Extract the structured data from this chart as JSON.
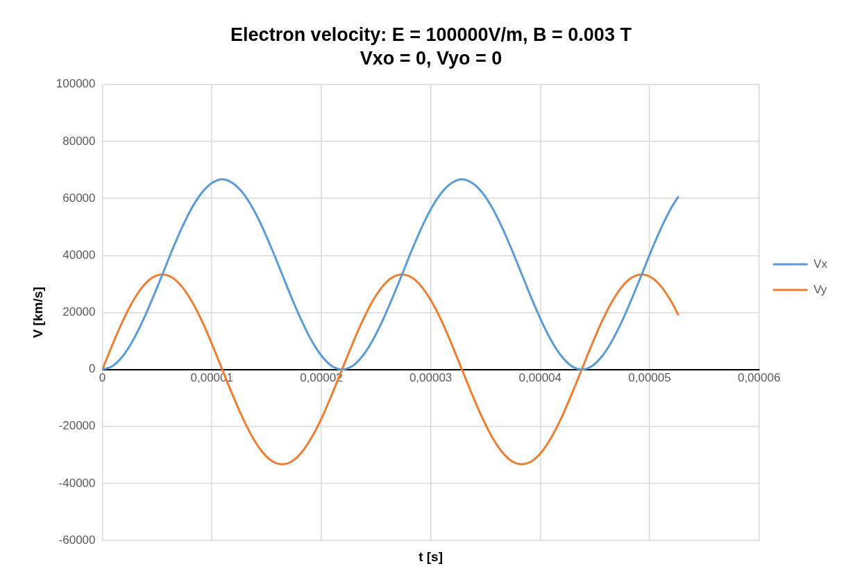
{
  "chart_data": {
    "type": "line",
    "title": "Electron velocity: E = 100000V/m, B = 0.003 T",
    "subtitle": "Vxo = 0, Vyo = 0",
    "xlabel": "t [s]",
    "ylabel": "V [km/s]",
    "x": [
      0,
      9.1e-07,
      1.83e-06,
      2.74e-06,
      3.65e-06,
      4.56e-06,
      5.48e-06,
      6.39e-06,
      7.3e-06,
      8.21e-06,
      9.13e-06,
      1.004e-05,
      1.095e-05,
      1.186e-05,
      1.278e-05,
      1.369e-05,
      1.46e-05,
      1.551e-05,
      1.643e-05,
      1.734e-05,
      1.825e-05,
      1.916e-05,
      2.008e-05,
      2.099e-05,
      2.19e-05,
      2.281e-05,
      2.373e-05,
      2.464e-05,
      2.555e-05,
      2.646e-05,
      2.738e-05,
      2.829e-05,
      2.92e-05,
      3.011e-05,
      3.103e-05,
      3.194e-05,
      3.285e-05,
      3.376e-05,
      3.468e-05,
      3.559e-05,
      3.65e-05,
      3.741e-05,
      3.833e-05,
      3.924e-05,
      4.015e-05,
      4.106e-05,
      4.198e-05,
      4.289e-05,
      4.38e-05,
      4.471e-05,
      4.563e-05,
      4.654e-05,
      4.745e-05,
      4.836e-05,
      4.928e-05,
      5.019e-05,
      5.11e-05,
      5.201e-05,
      5.26e-05
    ],
    "series": [
      {
        "name": "Vx",
        "color": "#5b9bd5",
        "values": [
          0,
          1100,
          4500,
          9800,
          16700,
          24700,
          33300,
          42000,
          50000,
          56900,
          62200,
          65500,
          66700,
          65500,
          62200,
          56900,
          50000,
          42000,
          33300,
          24700,
          16700,
          9800,
          4500,
          1100,
          0,
          1100,
          4500,
          9800,
          16700,
          24700,
          33300,
          42000,
          50000,
          56900,
          62200,
          65500,
          66700,
          65500,
          62200,
          56900,
          50000,
          42000,
          33300,
          24700,
          16700,
          9800,
          4500,
          1100,
          0,
          1100,
          4500,
          9800,
          16700,
          24700,
          33300,
          42000,
          50000,
          56900,
          60500
        ]
      },
      {
        "name": "Vy",
        "color": "#ed7d31",
        "values": [
          0,
          8600,
          16700,
          23600,
          28900,
          32200,
          33300,
          32200,
          28900,
          23600,
          16700,
          8600,
          0,
          -8600,
          -16700,
          -23600,
          -28900,
          -32200,
          -33300,
          -32200,
          -28900,
          -23600,
          -16700,
          -8600,
          0,
          8600,
          16700,
          23600,
          28900,
          32200,
          33300,
          32200,
          28900,
          23600,
          16700,
          8600,
          0,
          -8600,
          -16700,
          -23600,
          -28900,
          -32200,
          -33300,
          -32200,
          -28900,
          -23600,
          -16700,
          -8600,
          0,
          8600,
          16700,
          23600,
          28900,
          32200,
          33300,
          32200,
          28900,
          23600,
          19300
        ]
      }
    ],
    "xlim": [
      0,
      6e-05
    ],
    "xticks": [
      {
        "value": 0,
        "label": "0"
      },
      {
        "value": 1e-05,
        "label": "0,00001"
      },
      {
        "value": 2e-05,
        "label": "0,00002"
      },
      {
        "value": 3e-05,
        "label": "0,00003"
      },
      {
        "value": 4e-05,
        "label": "0,00004"
      },
      {
        "value": 5e-05,
        "label": "0,00005"
      },
      {
        "value": 6e-05,
        "label": "0,00006"
      }
    ],
    "ylim": [
      -60000,
      100000
    ],
    "yticks": [
      -60000,
      -40000,
      -20000,
      0,
      20000,
      40000,
      60000,
      80000,
      100000
    ],
    "grid": true,
    "legend": "right",
    "marker": "none",
    "line_style": "solid"
  }
}
